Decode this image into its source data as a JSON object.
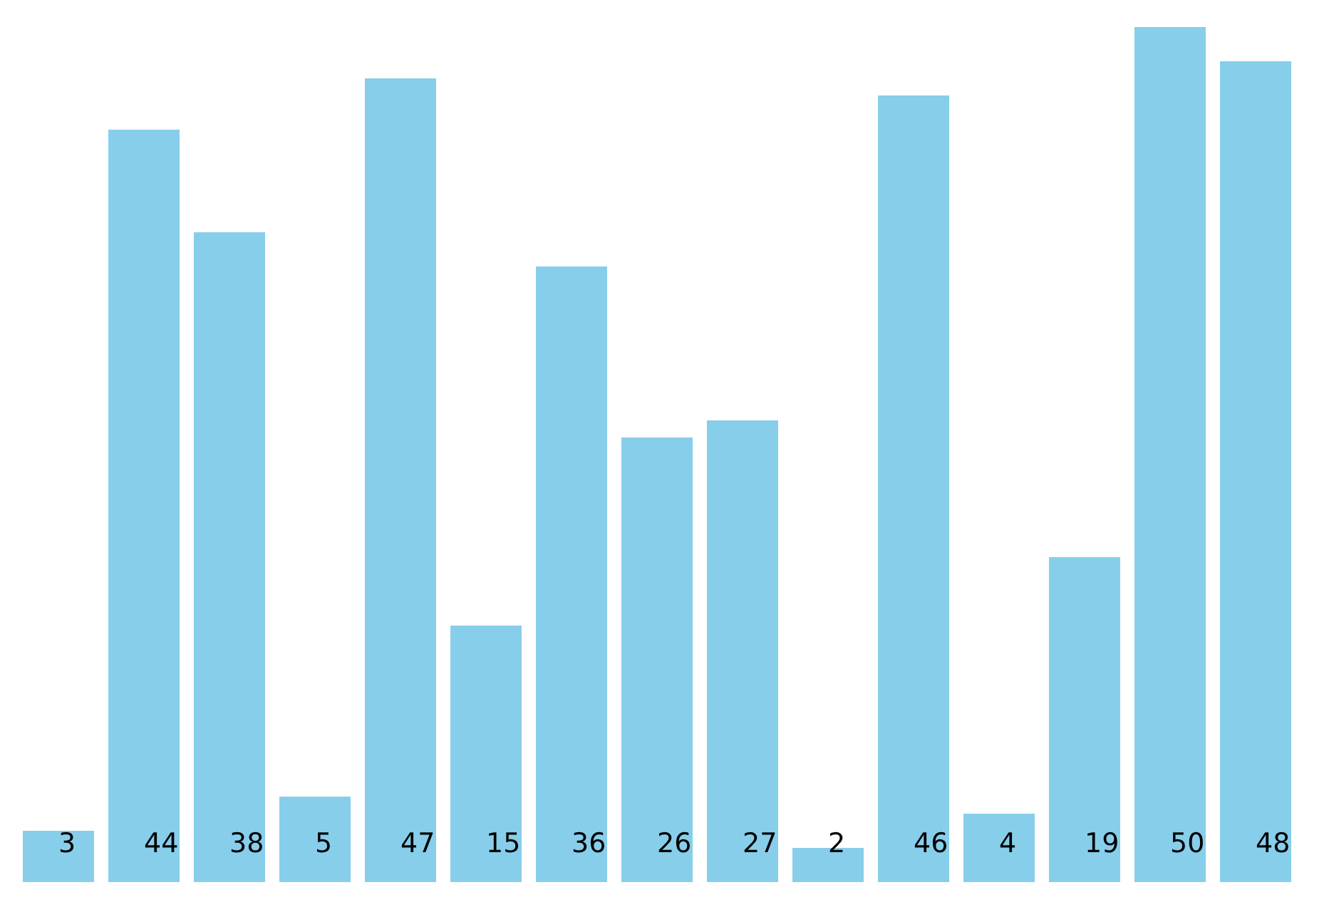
{
  "chart_data": {
    "type": "bar",
    "categories": [
      null,
      null,
      null,
      null,
      null,
      null,
      null,
      null,
      null,
      null,
      null,
      null,
      null,
      null,
      null
    ],
    "values": [
      3,
      44,
      38,
      5,
      47,
      15,
      36,
      26,
      27,
      2,
      46,
      4,
      19,
      50,
      48
    ],
    "color": "#87ceeb",
    "data_labels": true
  }
}
